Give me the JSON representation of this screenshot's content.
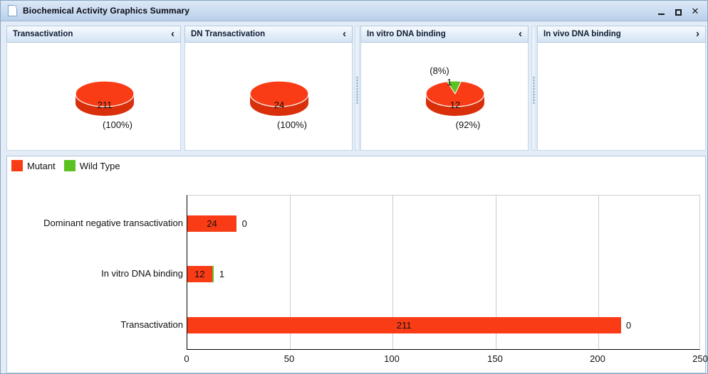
{
  "window": {
    "title": "Biochemical Activity Graphics Summary"
  },
  "colors": {
    "mutant": "#fa3c16",
    "mutant_side": "#d92f0b",
    "wild_type": "#5cc222",
    "grid": "#cccccc"
  },
  "panels": [
    {
      "title": "Transactivation",
      "arrow": "‹",
      "pie": {
        "slices": [
          {
            "name": "Mutant",
            "value": 211,
            "value_label": "211",
            "pct_label": "(100%)",
            "color": "#fa3c16",
            "side_color": "#d92f0b"
          }
        ]
      }
    },
    {
      "title": "DN Transactivation",
      "arrow": "‹",
      "pie": {
        "slices": [
          {
            "name": "Mutant",
            "value": 24,
            "value_label": "24",
            "pct_label": "(100%)",
            "color": "#fa3c16",
            "side_color": "#d92f0b"
          }
        ]
      }
    },
    {
      "title": "In vitro DNA binding",
      "arrow": "‹",
      "pie": {
        "slices": [
          {
            "name": "Mutant",
            "value": 12,
            "value_label": "12",
            "pct_label": "(92%)",
            "color": "#fa3c16",
            "side_color": "#d92f0b"
          },
          {
            "name": "Wild Type",
            "value": 1,
            "value_label": "1",
            "pct_label": "(8%)",
            "color": "#5cc222",
            "side_color": "#47a214"
          }
        ]
      }
    },
    {
      "title": "In vivo DNA binding",
      "arrow": "›",
      "pie": null
    }
  ],
  "legend": {
    "items": [
      {
        "label": "Mutant",
        "color": "#fa3c16"
      },
      {
        "label": "Wild Type",
        "color": "#5cc222"
      }
    ]
  },
  "chart_data": {
    "type": "bar",
    "orientation": "horizontal",
    "title": "",
    "categories": [
      "Dominant negative transactivation",
      "In vitro DNA binding",
      "Transactivation"
    ],
    "series": [
      {
        "name": "Mutant",
        "color": "#fa3c16",
        "values": [
          24,
          12,
          211
        ]
      },
      {
        "name": "Wild Type",
        "color": "#5cc222",
        "values": [
          0,
          1,
          0
        ]
      }
    ],
    "xlim": [
      0,
      250
    ],
    "xticks": [
      0,
      50,
      100,
      150,
      200,
      250
    ],
    "grid": true,
    "legend_position": "top-left",
    "bar_value_labels_shown": true
  }
}
